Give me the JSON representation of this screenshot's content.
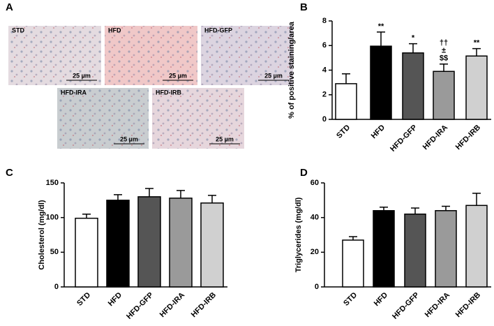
{
  "micrographs_panel": "A",
  "micrographs": [
    {
      "label": "STD",
      "scale": "25 µm"
    },
    {
      "label": "HFD",
      "scale": "25 µm"
    },
    {
      "label": "HFD-GFP",
      "scale": "25 µm"
    },
    {
      "label": "HFD-IRA",
      "scale": "25 µm"
    },
    {
      "label": "HFD-IRB",
      "scale": "25 µm"
    }
  ],
  "chart_data": [
    {
      "type": "bar",
      "panel": "B",
      "y_label": "% of positive staining/area",
      "categories": [
        "STD",
        "HFD",
        "HFD-GFP",
        "HFD-IRA",
        "HFD-IRB"
      ],
      "values": [
        2.9,
        5.95,
        5.4,
        3.9,
        5.15
      ],
      "errors": [
        0.8,
        1.15,
        0.75,
        0.6,
        0.6
      ],
      "colors": [
        "#ffffff",
        "#000000",
        "#555555",
        "#9a9a9a",
        "#d0d0d0"
      ],
      "annotations": [
        null,
        [
          "**"
        ],
        [
          "*"
        ],
        [
          "††",
          "±",
          "$$"
        ],
        [
          "**"
        ]
      ],
      "ylim": [
        0,
        8
      ],
      "yticks": [
        0,
        2,
        4,
        6,
        8
      ]
    },
    {
      "type": "bar",
      "panel": "C",
      "y_label": "Cholesterol  (mg/dl)",
      "categories": [
        "STD",
        "HFD",
        "HFD-GFP",
        "HFD-IRA",
        "HFD-IRB"
      ],
      "values": [
        99,
        125,
        130,
        128,
        121
      ],
      "errors": [
        6,
        8,
        12,
        11,
        11
      ],
      "colors": [
        "#ffffff",
        "#000000",
        "#555555",
        "#9a9a9a",
        "#d0d0d0"
      ],
      "ylim": [
        0,
        150
      ],
      "yticks": [
        0,
        50,
        100,
        150
      ]
    },
    {
      "type": "bar",
      "panel": "D",
      "y_label": "Triglycerides (mg/dl)",
      "categories": [
        "STD",
        "HFD",
        "HFD-GFP",
        "HFD-IRA",
        "HFD-IRB"
      ],
      "values": [
        27,
        44,
        42,
        44,
        47
      ],
      "errors": [
        2,
        2,
        3.5,
        2.5,
        7
      ],
      "colors": [
        "#ffffff",
        "#000000",
        "#555555",
        "#9a9a9a",
        "#d0d0d0"
      ],
      "ylim": [
        0,
        60
      ],
      "yticks": [
        0,
        20,
        40,
        60
      ]
    }
  ]
}
